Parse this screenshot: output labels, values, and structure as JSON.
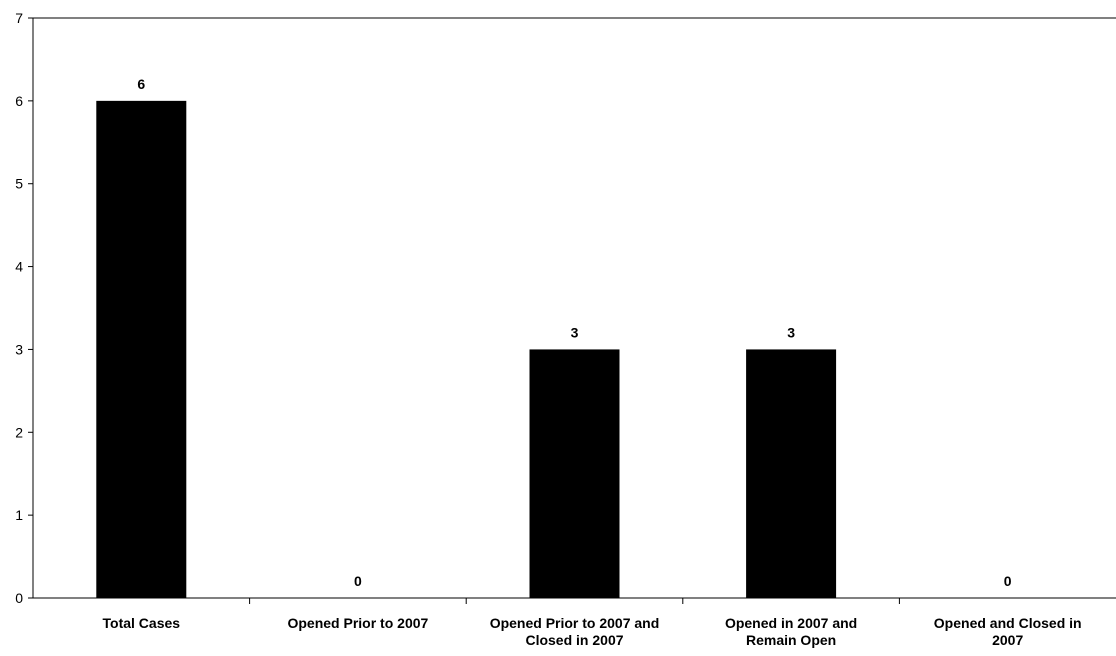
{
  "chart_data": {
    "type": "bar",
    "categories": [
      [
        "Total Cases"
      ],
      [
        "Opened Prior to 2007"
      ],
      [
        "Opened Prior to 2007 and",
        "Closed in 2007"
      ],
      [
        "Opened in 2007 and",
        "Remain Open"
      ],
      [
        "Opened and Closed in",
        "2007"
      ]
    ],
    "values": [
      6,
      0,
      3,
      3,
      0
    ],
    "data_labels": [
      "6",
      "0",
      "3",
      "3",
      "0"
    ],
    "title": "",
    "xlabel": "",
    "ylabel": "",
    "ylim": [
      0,
      7
    ],
    "yticks": [
      0,
      1,
      2,
      3,
      4,
      5,
      6,
      7
    ],
    "grid": false,
    "legend": "none",
    "colors": {
      "bar": "#000000",
      "axis": "#000000",
      "top_border": "#000000"
    }
  }
}
